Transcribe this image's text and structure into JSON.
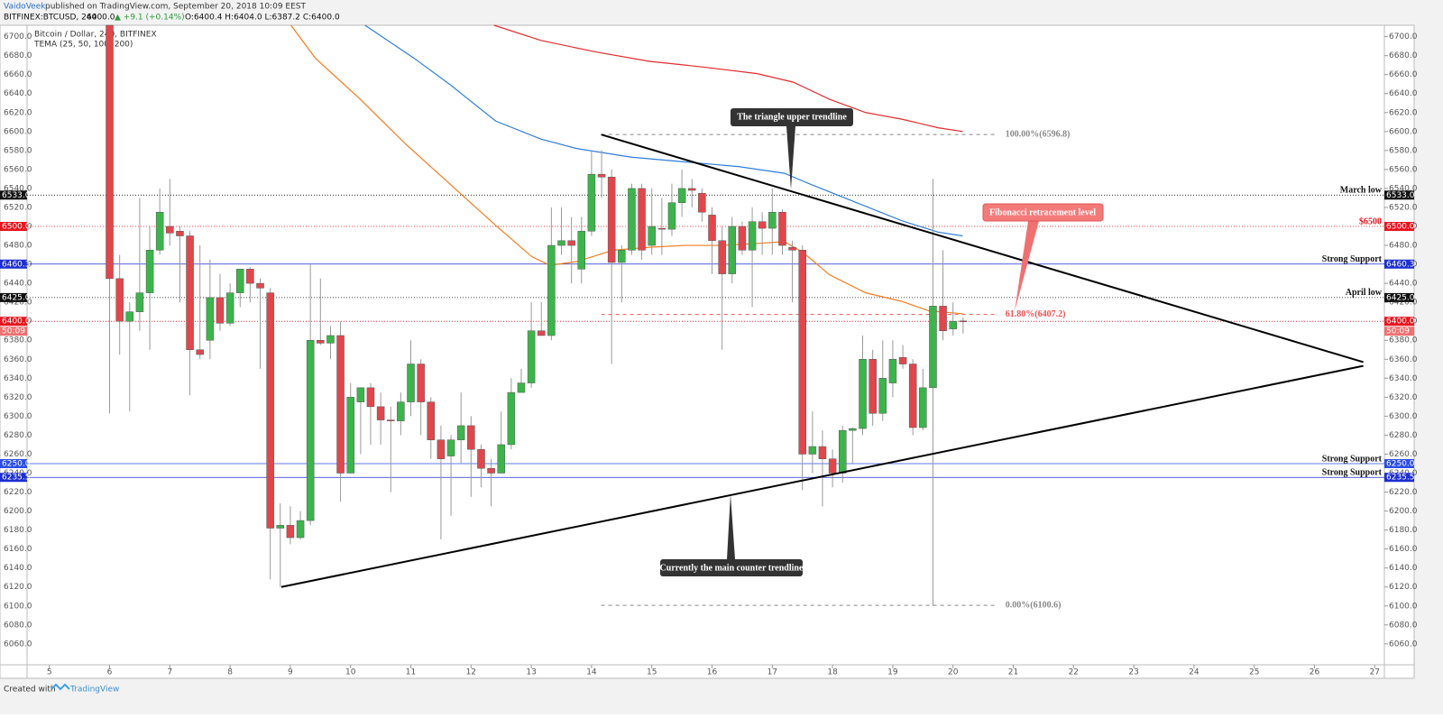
{
  "header": {
    "author": "VaidoVeek",
    "published": "published on TradingView.com, September 20, 2018 10:09 EEST",
    "symbol": "BITFINEX:BTCUSD, 240",
    "last": "6400.0",
    "change": "▲ +9.1 (+0.14%)",
    "ohlc": "O:6400.4 H:6404.0 L:6387.2 C:6400.0"
  },
  "footer": {
    "created": "Created with",
    "brand": "TradingView"
  },
  "annotations": {
    "upper": "The triangle upper trendline",
    "fib": "Fibonacci retracement level",
    "lower": "Currently the main counter trendline"
  },
  "chart_data": {
    "type": "candlestick",
    "title": "Bitcoin / Dollar, 240, BITFINEX",
    "subtitle": "TEMA (25, 50, 100, 200)",
    "up_color": "#3cb44b",
    "down_color": "#e0474c",
    "xlim": [
      4.63,
      27.16
    ],
    "xticks": [
      5,
      6,
      7,
      8,
      9,
      10,
      11,
      12,
      13,
      14,
      15,
      16,
      17,
      18,
      19,
      20,
      21,
      22,
      23,
      24,
      25,
      26,
      27
    ],
    "ylim": [
      6038,
      6712
    ],
    "yticks": [
      {
        "value": 6060,
        "label": "6060.0"
      },
      {
        "value": 6080,
        "label": "6080.0"
      },
      {
        "value": 6100,
        "label": "6100.0"
      },
      {
        "value": 6120,
        "label": "6120.0"
      },
      {
        "value": 6140,
        "label": "6140.0"
      },
      {
        "value": 6160,
        "label": "6160.0"
      },
      {
        "value": 6180,
        "label": "6180.0"
      },
      {
        "value": 6200,
        "label": "6200.0"
      },
      {
        "value": 6220,
        "label": "6220.0"
      },
      {
        "value": 6240,
        "label": "6240.0"
      },
      {
        "value": 6260,
        "label": "6260.0"
      },
      {
        "value": 6280,
        "label": "6280.0"
      },
      {
        "value": 6300,
        "label": "6300.0"
      },
      {
        "value": 6320,
        "label": "6320.0"
      },
      {
        "value": 6340,
        "label": "6340.0"
      },
      {
        "value": 6360,
        "label": "6360.0"
      },
      {
        "value": 6380,
        "label": "6380.0"
      },
      {
        "value": 6400,
        "label": "6400.0"
      },
      {
        "value": 6420,
        "label": "6420.0"
      },
      {
        "value": 6440,
        "label": "6440.0"
      },
      {
        "value": 6460,
        "label": "6460.0"
      },
      {
        "value": 6480,
        "label": "6480.0"
      },
      {
        "value": 6500,
        "label": "6500.0"
      },
      {
        "value": 6520,
        "label": "6520.0"
      },
      {
        "value": 6540,
        "label": "6540.0"
      },
      {
        "value": 6560,
        "label": "6560.0"
      },
      {
        "value": 6580,
        "label": "6580.0"
      },
      {
        "value": 6600,
        "label": "6600.0"
      },
      {
        "value": 6620,
        "label": "6620.0"
      },
      {
        "value": 6640,
        "label": "6640.0"
      },
      {
        "value": 6660,
        "label": "6660.0"
      },
      {
        "value": 6680,
        "label": "6680.0"
      },
      {
        "value": 6700,
        "label": "6700.0"
      }
    ],
    "x": [
      6,
      6.167,
      6.333,
      6.5,
      6.667,
      6.833,
      7,
      7.167,
      7.333,
      7.5,
      7.667,
      7.833,
      8,
      8.167,
      8.333,
      8.5,
      8.667,
      8.833,
      9,
      9.167,
      9.333,
      9.5,
      9.667,
      9.833,
      10,
      10.167,
      10.333,
      10.5,
      10.667,
      10.833,
      11,
      11.167,
      11.333,
      11.5,
      11.667,
      11.833,
      12,
      12.167,
      12.333,
      12.5,
      12.667,
      12.833,
      13,
      13.167,
      13.333,
      13.5,
      13.667,
      13.833,
      14,
      14.167,
      14.333,
      14.5,
      14.667,
      14.833,
      15,
      15.167,
      15.333,
      15.5,
      15.667,
      15.833,
      16,
      16.167,
      16.333,
      16.5,
      16.667,
      16.833,
      17,
      17.167,
      17.333,
      17.5,
      17.667,
      17.833,
      18,
      18.167,
      18.333,
      18.5,
      18.667,
      18.833,
      19,
      19.167,
      19.333,
      19.5,
      19.667,
      19.833,
      20,
      20.167
    ],
    "open": [
      6712,
      6445,
      6400,
      6410,
      6430,
      6475,
      6500,
      6495,
      6490,
      6370,
      6380,
      6425,
      6398,
      6430,
      6455,
      6440,
      6430,
      6182,
      6185,
      6172,
      6190,
      6380,
      6377,
      6385,
      6240,
      6315,
      6330,
      6310,
      6296,
      6295,
      6315,
      6355,
      6315,
      6275,
      6258,
      6275,
      6290,
      6265,
      6245,
      6240,
      6270,
      6325,
      6335,
      6390,
      6385,
      6480,
      6485,
      6455,
      6495,
      6555,
      6552,
      6462,
      6475,
      6540,
      6480,
      6498,
      6497,
      6525,
      6540,
      6535,
      6512,
      6485,
      6450,
      6500,
      6475,
      6505,
      6498,
      6515,
      6478,
      6475,
      6260,
      6268,
      6255,
      6240,
      6285,
      6287,
      6360,
      6303,
      6335,
      6362,
      6355,
      6288,
      6330,
      6416,
      6392,
      6400.4
    ],
    "high": [
      6712,
      6470,
      6420,
      6530,
      6500,
      6540,
      6550,
      6500,
      6495,
      6480,
      6465,
      6450,
      6440,
      6455,
      6457,
      6445,
      6435,
      6208,
      6205,
      6200,
      6460,
      6445,
      6395,
      6400,
      6335,
      6330,
      6335,
      6325,
      6310,
      6325,
      6380,
      6360,
      6320,
      6290,
      6280,
      6325,
      6300,
      6270,
      6255,
      6305,
      6340,
      6350,
      6420,
      6420,
      6520,
      6520,
      6510,
      6510,
      6580,
      6580,
      6560,
      6480,
      6545,
      6545,
      6540,
      6530,
      6545,
      6560,
      6550,
      6540,
      6520,
      6500,
      6510,
      6505,
      6520,
      6515,
      6540,
      6518,
      6485,
      6480,
      6305,
      6285,
      6265,
      6290,
      6288,
      6385,
      6370,
      6380,
      6380,
      6375,
      6360,
      6350,
      6550,
      6475,
      6420,
      6404
    ],
    "low": [
      6303,
      6365,
      6305,
      6390,
      6370,
      6470,
      6480,
      6420,
      6322,
      6360,
      6360,
      6390,
      6395,
      6415,
      6420,
      6350,
      6128,
      6120,
      6165,
      6170,
      6185,
      6375,
      6360,
      6210,
      6240,
      6260,
      6270,
      6270,
      6220,
      6280,
      6300,
      6280,
      6255,
      6170,
      6195,
      6250,
      6215,
      6225,
      6205,
      6240,
      6265,
      6325,
      6330,
      6385,
      6380,
      6470,
      6440,
      6440,
      6490,
      6530,
      6355,
      6420,
      6470,
      6465,
      6470,
      6470,
      6490,
      6510,
      6520,
      6505,
      6450,
      6370,
      6440,
      6470,
      6415,
      6470,
      6470,
      6470,
      6420,
      6222,
      6240,
      6205,
      6225,
      6230,
      6250,
      6280,
      6290,
      6295,
      6320,
      6350,
      6280,
      6285,
      6100,
      6380,
      6385,
      6387.2
    ],
    "close": [
      6445,
      6400,
      6410,
      6430,
      6475,
      6515,
      6493,
      6490,
      6370,
      6365,
      6425,
      6398,
      6430,
      6455,
      6440,
      6435,
      6182,
      6185,
      6172,
      6190,
      6380,
      6377,
      6385,
      6240,
      6320,
      6330,
      6310,
      6296,
      6295,
      6315,
      6355,
      6315,
      6275,
      6255,
      6275,
      6290,
      6265,
      6245,
      6240,
      6270,
      6325,
      6335,
      6390,
      6385,
      6480,
      6485,
      6480,
      6495,
      6555,
      6552,
      6462,
      6475,
      6540,
      6475,
      6500,
      6497,
      6525,
      6540,
      6538,
      6515,
      6485,
      6450,
      6500,
      6475,
      6505,
      6498,
      6515,
      6480,
      6475,
      6260,
      6268,
      6255,
      6240,
      6285,
      6287,
      6360,
      6303,
      6340,
      6360,
      6355,
      6288,
      6330,
      6416,
      6390,
      6400,
      6400
    ],
    "series": [
      {
        "color": "#f57c1f",
        "x": [
          9.01,
          9.42,
          10.16,
          10.91,
          11.66,
          12.41,
          13.01,
          13.31,
          13.76,
          14.36,
          14.96,
          15.55,
          16.15,
          16.75,
          17.2,
          17.5,
          17.95,
          18.55,
          19.15,
          19.6,
          20.16
        ],
        "values": [
          6712,
          6677,
          6634,
          6587,
          6544,
          6501,
          6468,
          6459,
          6463,
          6475,
          6478,
          6480,
          6480,
          6482,
          6484,
          6473,
          6449,
          6430,
          6421,
          6411,
          6408
        ]
      },
      {
        "color": "#2f7ed8",
        "x": [
          10.24,
          11.06,
          11.66,
          12.41,
          13.16,
          13.76,
          14.66,
          15.55,
          16.45,
          17.2,
          17.65,
          18.4,
          19.15,
          19.75,
          20.16
        ],
        "values": [
          6712,
          6677,
          6649,
          6611,
          6592,
          6582,
          6573,
          6568,
          6563,
          6556,
          6544,
          6525,
          6506,
          6494,
          6490
        ]
      },
      {
        "color": "#e32b2b",
        "x": [
          12.38,
          13.16,
          14.06,
          14.96,
          15.85,
          16.75,
          17.35,
          17.95,
          18.55,
          19.15,
          19.75,
          20.16
        ],
        "values": [
          6712,
          6696,
          6684,
          6674,
          6668,
          6661,
          6652,
          6634,
          6620,
          6613,
          6604,
          6600
        ]
      }
    ],
    "trendlines": [
      {
        "x": [
          14.16,
          26.81
        ],
        "values": [
          6596.8,
          6357
        ]
      },
      {
        "x": [
          8.85,
          26.81
        ],
        "values": [
          6120,
          6353
        ]
      }
    ],
    "fib_range": [
      14.16,
      20.72
    ],
    "fib": [
      {
        "value": 6596.8,
        "label": "100.00%(6596.8)",
        "color": "#888888"
      },
      {
        "value": 6407.2,
        "label": "61.80%(6407.2)",
        "color": "#f05050"
      },
      {
        "value": 6100.6,
        "label": "0.00%(6100.6)",
        "color": "#888888"
      }
    ],
    "price_lines": [
      {
        "price": {
          "value": 6533,
          "label": "6533.0"
        },
        "text": "March low",
        "color": "#111111",
        "dash": "1,2"
      },
      {
        "price": {
          "value": 6500,
          "label": "6500.0"
        },
        "text": "$6500",
        "color": "#e8141c",
        "dash": "1,2"
      },
      {
        "price": {
          "value": 6460.3,
          "label": "6460.3"
        },
        "text": "Strong Support",
        "color": "#1c2fd0",
        "dash": "none"
      },
      {
        "price": {
          "value": 6425,
          "label": "6425.0"
        },
        "text": "April low",
        "color": "#111111",
        "dash": "1,2"
      },
      {
        "price": {
          "value": 6400,
          "label": "6400.0"
        },
        "countdown": "50:09",
        "color": "#e8141c",
        "dash": "1,2"
      },
      {
        "price": {
          "value": 6250,
          "label": "6250.0"
        },
        "text": "Strong Support",
        "color": "#2a4ee8",
        "dash": "none"
      },
      {
        "price": {
          "value": 6235.5,
          "label": "6235.5"
        },
        "text": "Strong Support",
        "color": "#1c2fd0",
        "dash": "none"
      }
    ]
  }
}
